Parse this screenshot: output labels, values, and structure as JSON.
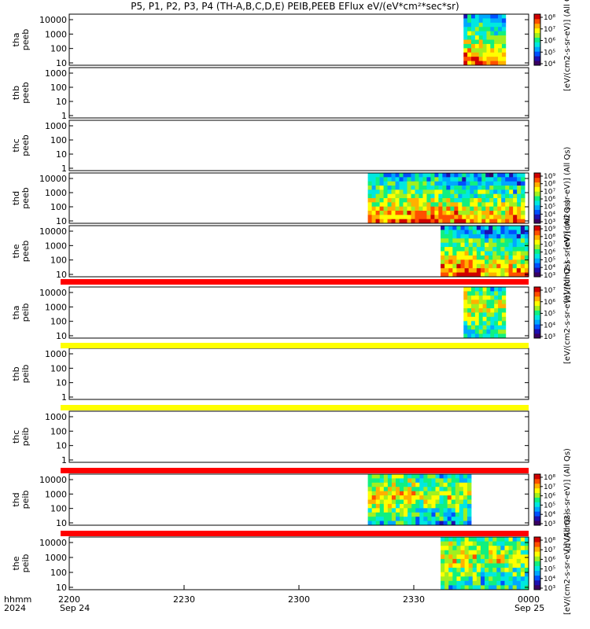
{
  "title": "P5, P1, P2, P3, P4 (TH-A,B,C,D,E) PEIB,PEEB EFlux eV/(eV*cm²*sec*sr)",
  "bottom_axis": {
    "labels": [
      "2200",
      "2230",
      "2300",
      "2330",
      "0000"
    ],
    "dates": [
      "Sep 24",
      "Sep 25"
    ],
    "row1_title": "hhmm",
    "row2_title": "2024"
  },
  "chart_data": {
    "type": "heatmap",
    "x_unit": "hhmm",
    "x_range": [
      "2200",
      "0000"
    ],
    "panels": [
      {
        "ylabel": [
          "tha",
          "peeb"
        ],
        "y_ticks": [
          "10",
          "100",
          "1000",
          "10000"
        ],
        "data_range": [
          "2343",
          "2354"
        ],
        "has_data": true,
        "colorbar": "cb1",
        "scale": "log"
      },
      {
        "ylabel": [
          "thb",
          "peeb"
        ],
        "y_ticks": [
          "1",
          "10",
          "100",
          "1000"
        ],
        "has_data": false,
        "scale": "log"
      },
      {
        "ylabel": [
          "thc",
          "peeb"
        ],
        "y_ticks": [
          "1",
          "10",
          "100",
          "1000"
        ],
        "has_data": false,
        "scale": "log"
      },
      {
        "ylabel": [
          "thd",
          "peeb"
        ],
        "y_ticks": [
          "10",
          "100",
          "1000",
          "10000"
        ],
        "data_range": [
          "2318",
          "2359"
        ],
        "has_data": true,
        "colorbar": "cb2",
        "scale": "log"
      },
      {
        "ylabel": [
          "the",
          "peeb"
        ],
        "y_ticks": [
          "10",
          "100",
          "1000",
          "10000"
        ],
        "data_range": [
          "2337",
          "0000"
        ],
        "has_data": true,
        "colorbar": "cb3",
        "scale": "log"
      },
      {
        "ylabel": [
          "tha",
          "peib"
        ],
        "y_ticks": [
          "10",
          "100",
          "1000",
          "10000"
        ],
        "data_range": [
          "2343",
          "2354"
        ],
        "has_data": true,
        "colorbar": "cb4",
        "scale": "log"
      },
      {
        "ylabel": [
          "thb",
          "peib"
        ],
        "y_ticks": [
          "1",
          "10",
          "100",
          "1000"
        ],
        "has_data": false,
        "scale": "log"
      },
      {
        "ylabel": [
          "thc",
          "peib"
        ],
        "y_ticks": [
          "1",
          "10",
          "100",
          "1000"
        ],
        "has_data": false,
        "scale": "log"
      },
      {
        "ylabel": [
          "thd",
          "peib"
        ],
        "y_ticks": [
          "10",
          "100",
          "1000",
          "10000"
        ],
        "data_range": [
          "2318",
          "2345"
        ],
        "has_data": true,
        "colorbar": "cb5",
        "scale": "log"
      },
      {
        "ylabel": [
          "the",
          "peib"
        ],
        "y_ticks": [
          "10",
          "100",
          "1000",
          "10000"
        ],
        "data_range": [
          "2337",
          "0000"
        ],
        "has_data": true,
        "colorbar": "cb6",
        "scale": "log"
      }
    ],
    "colorbars": {
      "cb1": {
        "label": "[eV/(cm2-s-sr-eV)] (All Qs)",
        "ticks": [
          "10⁴",
          "10⁵",
          "10⁶",
          "10⁷",
          "10⁸"
        ]
      },
      "cb2": {
        "label": "[eV/(cm2-s-sr-eV)] (All Qs)",
        "ticks": [
          "10³",
          "10⁴",
          "10⁵",
          "10⁶",
          "10⁷",
          "10⁸",
          "10⁹"
        ]
      },
      "cb3": {
        "label": "[eV/(cm2-s-sr-eV)] (All Qs)",
        "ticks": [
          "10³",
          "10⁴",
          "10⁵",
          "10⁶",
          "10⁷",
          "10⁸",
          "10⁹"
        ]
      },
      "cb4": {
        "label": "[eV/(cm2-s-sr-eV)] (All Qs)",
        "ticks": [
          "10³",
          "10⁴",
          "10⁵",
          "10⁶",
          "10⁷"
        ]
      },
      "cb5": {
        "label": "[eV/(cm2-s-sr-eV)] (All Qs)",
        "ticks": [
          "10³",
          "10⁴",
          "10⁵",
          "10⁶",
          "10⁷",
          "10⁸"
        ]
      },
      "cb6": {
        "label": "[eV/(cm2-s-sr-eV)] (All Qs)",
        "ticks": [
          "10³",
          "10⁴",
          "10⁵",
          "10⁶",
          "10⁷",
          "10⁸"
        ]
      }
    },
    "flag_bars": [
      {
        "after_panel": 5,
        "color": "#ff0000"
      },
      {
        "after_panel": 6,
        "color": "#ffff00"
      },
      {
        "after_panel": 7,
        "color": "#ffff00"
      },
      {
        "after_panel": 8,
        "color": "#ff0000"
      },
      {
        "after_panel": 9,
        "color": "#ff0000"
      }
    ],
    "colormap": [
      "#3a0062",
      "#1d0fb0",
      "#0050ff",
      "#00a8ff",
      "#00e8e0",
      "#10f080",
      "#a0f020",
      "#ffff00",
      "#ffb000",
      "#ff5000",
      "#d00000"
    ]
  }
}
